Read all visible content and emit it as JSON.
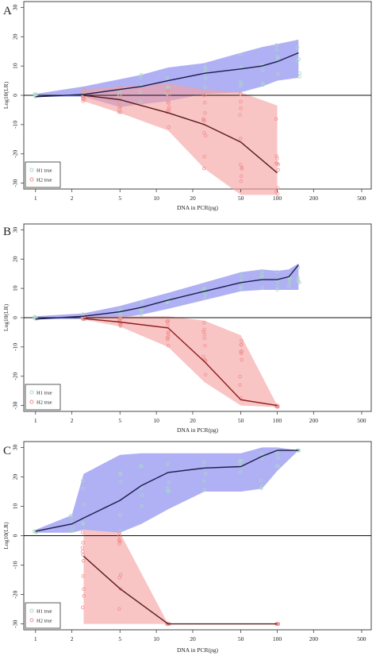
{
  "chart_data": [
    {
      "panel": "A",
      "type": "line",
      "xlabel": "DNA in PCR(pg)",
      "ylabel": "Log10(LR)",
      "xscale": "log",
      "xticks": [
        1,
        2,
        5,
        10,
        20,
        50,
        100,
        200,
        500
      ],
      "yticks": [
        -30,
        -20,
        -10,
        0,
        10,
        20,
        30
      ],
      "xlim": [
        0.8,
        600
      ],
      "ylim": [
        -32,
        32
      ],
      "legend": [
        "H1 true",
        "H2 true"
      ],
      "legend_position": "bottom-left",
      "colors": {
        "h1_band": "#8080ee",
        "h1_line": "#1c1c4e",
        "h2_band": "#f5a0a0",
        "h2_line": "#5a1a1a",
        "h1_points": "#a8d8c8",
        "h2_points": "#f09090"
      },
      "series": [
        {
          "name": "H1 true",
          "x": [
            1,
            2.5,
            5,
            7.5,
            12.5,
            25,
            50,
            75,
            100,
            150
          ],
          "values": [
            -0.5,
            0.3,
            2.0,
            3.0,
            5.0,
            7.5,
            9.0,
            10.0,
            11.5,
            14.5
          ],
          "lower": [
            -0.5,
            -0.5,
            -4.0,
            -3.0,
            -2.0,
            0.5,
            1.0,
            3.0,
            5.0,
            6.0
          ],
          "upper": [
            0.5,
            3.0,
            5.5,
            7.0,
            9.5,
            11.0,
            14.5,
            16.5,
            17.5,
            19.0
          ]
        },
        {
          "name": "H2 true",
          "x": [
            2.5,
            5,
            12.5,
            25,
            50,
            100
          ],
          "values": [
            0,
            -1.5,
            -6.0,
            -10.0,
            -16.0,
            -26.5
          ],
          "lower": [
            -2.0,
            -6.0,
            -12.0,
            -25.0,
            -34.0,
            -34.0
          ],
          "upper": [
            2.0,
            3.0,
            4.0,
            2.0,
            1.0,
            -3.5
          ]
        }
      ]
    },
    {
      "panel": "B",
      "type": "line",
      "xlabel": "DNA in PCR(pg)",
      "ylabel": "Log10(LR)",
      "xscale": "log",
      "xticks": [
        1,
        2,
        5,
        10,
        20,
        50,
        100,
        200,
        500
      ],
      "yticks": [
        -30,
        -20,
        -10,
        0,
        10,
        20,
        30
      ],
      "xlim": [
        0.8,
        600
      ],
      "ylim": [
        -32,
        32
      ],
      "legend": [
        "H1 true",
        "H2 true"
      ],
      "legend_position": "bottom-left",
      "colors": {
        "h1_band": "#8080ee",
        "h1_line": "#1c1c4e",
        "h2_band": "#f5a0a0",
        "h2_line": "#8b1a1a",
        "h1_points": "#a8d8c8",
        "h2_points": "#f09090"
      },
      "series": [
        {
          "name": "H1 true",
          "x": [
            1,
            2.5,
            5,
            7.5,
            12.5,
            25,
            50,
            75,
            100,
            125,
            150
          ],
          "values": [
            -0.5,
            0.5,
            2.0,
            3.5,
            6.0,
            9.0,
            12.0,
            13.0,
            13.0,
            14.0,
            18.0
          ],
          "lower": [
            -0.5,
            -0.5,
            0,
            1.0,
            3.0,
            6.0,
            9.0,
            9.5,
            9.5,
            9.5,
            9.5
          ],
          "upper": [
            0.5,
            1.5,
            4.0,
            6.0,
            8.5,
            12.0,
            15.5,
            16.5,
            16.0,
            16.5,
            18.5
          ]
        },
        {
          "name": "H2 true",
          "x": [
            2.5,
            5,
            12.5,
            25,
            50,
            100
          ],
          "values": [
            -0.3,
            -1.5,
            -3.5,
            -15.0,
            -28.0,
            -30.0
          ],
          "lower": [
            -0.6,
            -3.0,
            -10.0,
            -22.0,
            -30.0,
            -30.5
          ],
          "upper": [
            0.5,
            0.5,
            0.5,
            -1.0,
            -6.0,
            -30.0
          ]
        }
      ]
    },
    {
      "panel": "C",
      "type": "line",
      "xlabel": "DNA in PCR(pg)",
      "ylabel": "Log10(LR)",
      "xscale": "log",
      "xticks": [
        1,
        2,
        5,
        10,
        20,
        50,
        100,
        200,
        500
      ],
      "yticks": [
        -30,
        -20,
        -10,
        0,
        10,
        20,
        30
      ],
      "xlim": [
        0.8,
        600
      ],
      "ylim": [
        -32,
        32
      ],
      "legend": [
        "H1 true",
        "H2 true"
      ],
      "legend_position": "bottom-left",
      "colors": {
        "h1_band": "#8080ee",
        "h1_line": "#1c1c4e",
        "h2_band": "#f5a0a0",
        "h2_line": "#5a1a1a",
        "h1_points": "#a8d8c8",
        "h2_points": "#f09090"
      },
      "series": [
        {
          "name": "H1 true",
          "x": [
            1,
            2,
            2.5,
            5,
            7.5,
            12.5,
            25,
            50,
            75,
            100,
            150
          ],
          "values": [
            1.5,
            4.0,
            6.0,
            12.0,
            17.0,
            21.5,
            23.0,
            23.5,
            27.0,
            29.0,
            29.0
          ],
          "lower": [
            1.0,
            1.0,
            2.0,
            1.0,
            4.0,
            9.0,
            15.0,
            15.0,
            16.0,
            22.0,
            29.0
          ],
          "upper": [
            2.0,
            7.0,
            21.0,
            27.5,
            28.0,
            28.0,
            28.0,
            28.0,
            30.0,
            30.0,
            29.0
          ]
        },
        {
          "name": "H2 true",
          "x": [
            2.5,
            5,
            12.5,
            100
          ],
          "values": [
            -7.0,
            -18.0,
            -30.0,
            -30.0
          ],
          "lower": [
            -30.0,
            -30.0,
            -30.0,
            -30.0
          ],
          "upper": [
            2.0,
            1.0,
            -30.0,
            -30.0
          ]
        }
      ]
    }
  ]
}
